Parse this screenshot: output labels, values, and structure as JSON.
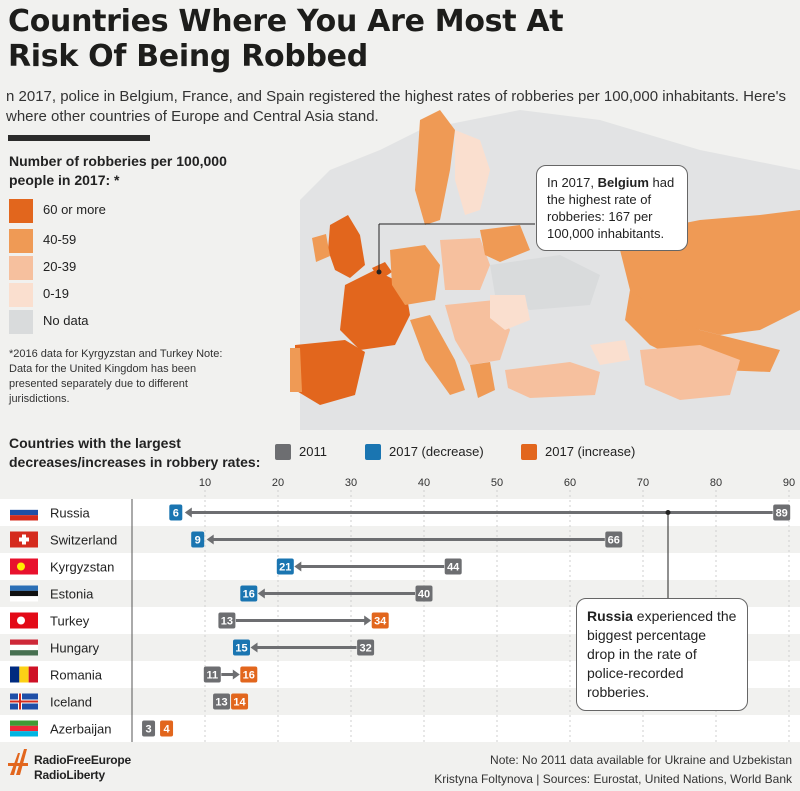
{
  "header": {
    "title": "Countries Where You Are Most At Risk Of Being Robbed",
    "intro": "n 2017, police in Belgium, France, and Spain registered the highest rates of robberies per 100,000 inhabitants. Here's where other countries of Europe and Central Asia stand."
  },
  "legend": {
    "title": "Number of robberies per 100,000 people in 2017: *",
    "items": [
      {
        "label": "60 or more",
        "color": "#e2661d"
      },
      {
        "label": "40-59",
        "color": "#ef9a55"
      },
      {
        "label": "20-39",
        "color": "#f6c09e"
      },
      {
        "label": "0-19",
        "color": "#fadfcf"
      },
      {
        "label": "No data",
        "color": "#d9dbdc"
      }
    ],
    "note": "*2016 data for Kyrgyzstan and Turkey Note: Data for the United Kingdom has been presented separately due to different jurisdictions."
  },
  "callouts": {
    "belgium": {
      "pre": "In 2017, ",
      "bold": "Belgium",
      "post": " had the highest rate of robberies: 167 per 100,000 inhabitants."
    },
    "russia": {
      "bold": "Russia",
      "post": " experienced the biggest percentage drop in the rate of police-recorded robberies."
    }
  },
  "chart_data": {
    "type": "dumbbell",
    "title": "Countries with the largest decreases/increases in robbery rates:",
    "series_names": [
      "2011",
      "2017 (decrease)",
      "2017 (increase)"
    ],
    "series_colors": {
      "2011": "#6d6e71",
      "2017 (decrease)": "#1a75b1",
      "2017 (increase)": "#e2661d"
    },
    "xticks": [
      10,
      20,
      30,
      40,
      50,
      60,
      70,
      80,
      90
    ],
    "xlim": [
      0,
      92
    ],
    "rows": [
      {
        "country": "Russia",
        "v2011": 89,
        "v2017": 6,
        "direction": "decrease"
      },
      {
        "country": "Switzerland",
        "v2011": 66,
        "v2017": 9,
        "direction": "decrease"
      },
      {
        "country": "Kyrgyzstan",
        "v2011": 44,
        "v2017": 21,
        "direction": "decrease"
      },
      {
        "country": "Estonia",
        "v2011": 40,
        "v2017": 16,
        "direction": "decrease"
      },
      {
        "country": "Turkey",
        "v2011": 13,
        "v2017": 34,
        "direction": "increase"
      },
      {
        "country": "Hungary",
        "v2011": 32,
        "v2017": 15,
        "direction": "decrease"
      },
      {
        "country": "Romania",
        "v2011": 11,
        "v2017": 16,
        "direction": "increase"
      },
      {
        "country": "Iceland",
        "v2011": 13,
        "v2017": 14,
        "direction": "increase"
      },
      {
        "country": "Azerbaijan",
        "v2011": 3,
        "v2017": 4,
        "direction": "increase"
      }
    ]
  },
  "footer": {
    "logo_line1": "RadioFreeEurope",
    "logo_line2": "RadioLiberty",
    "note": "Note: No 2011 data available for Ukraine and Uzbekistan",
    "credits": "Kristyna Foltynova | Sources: Eurostat, United Nations, World Bank"
  }
}
